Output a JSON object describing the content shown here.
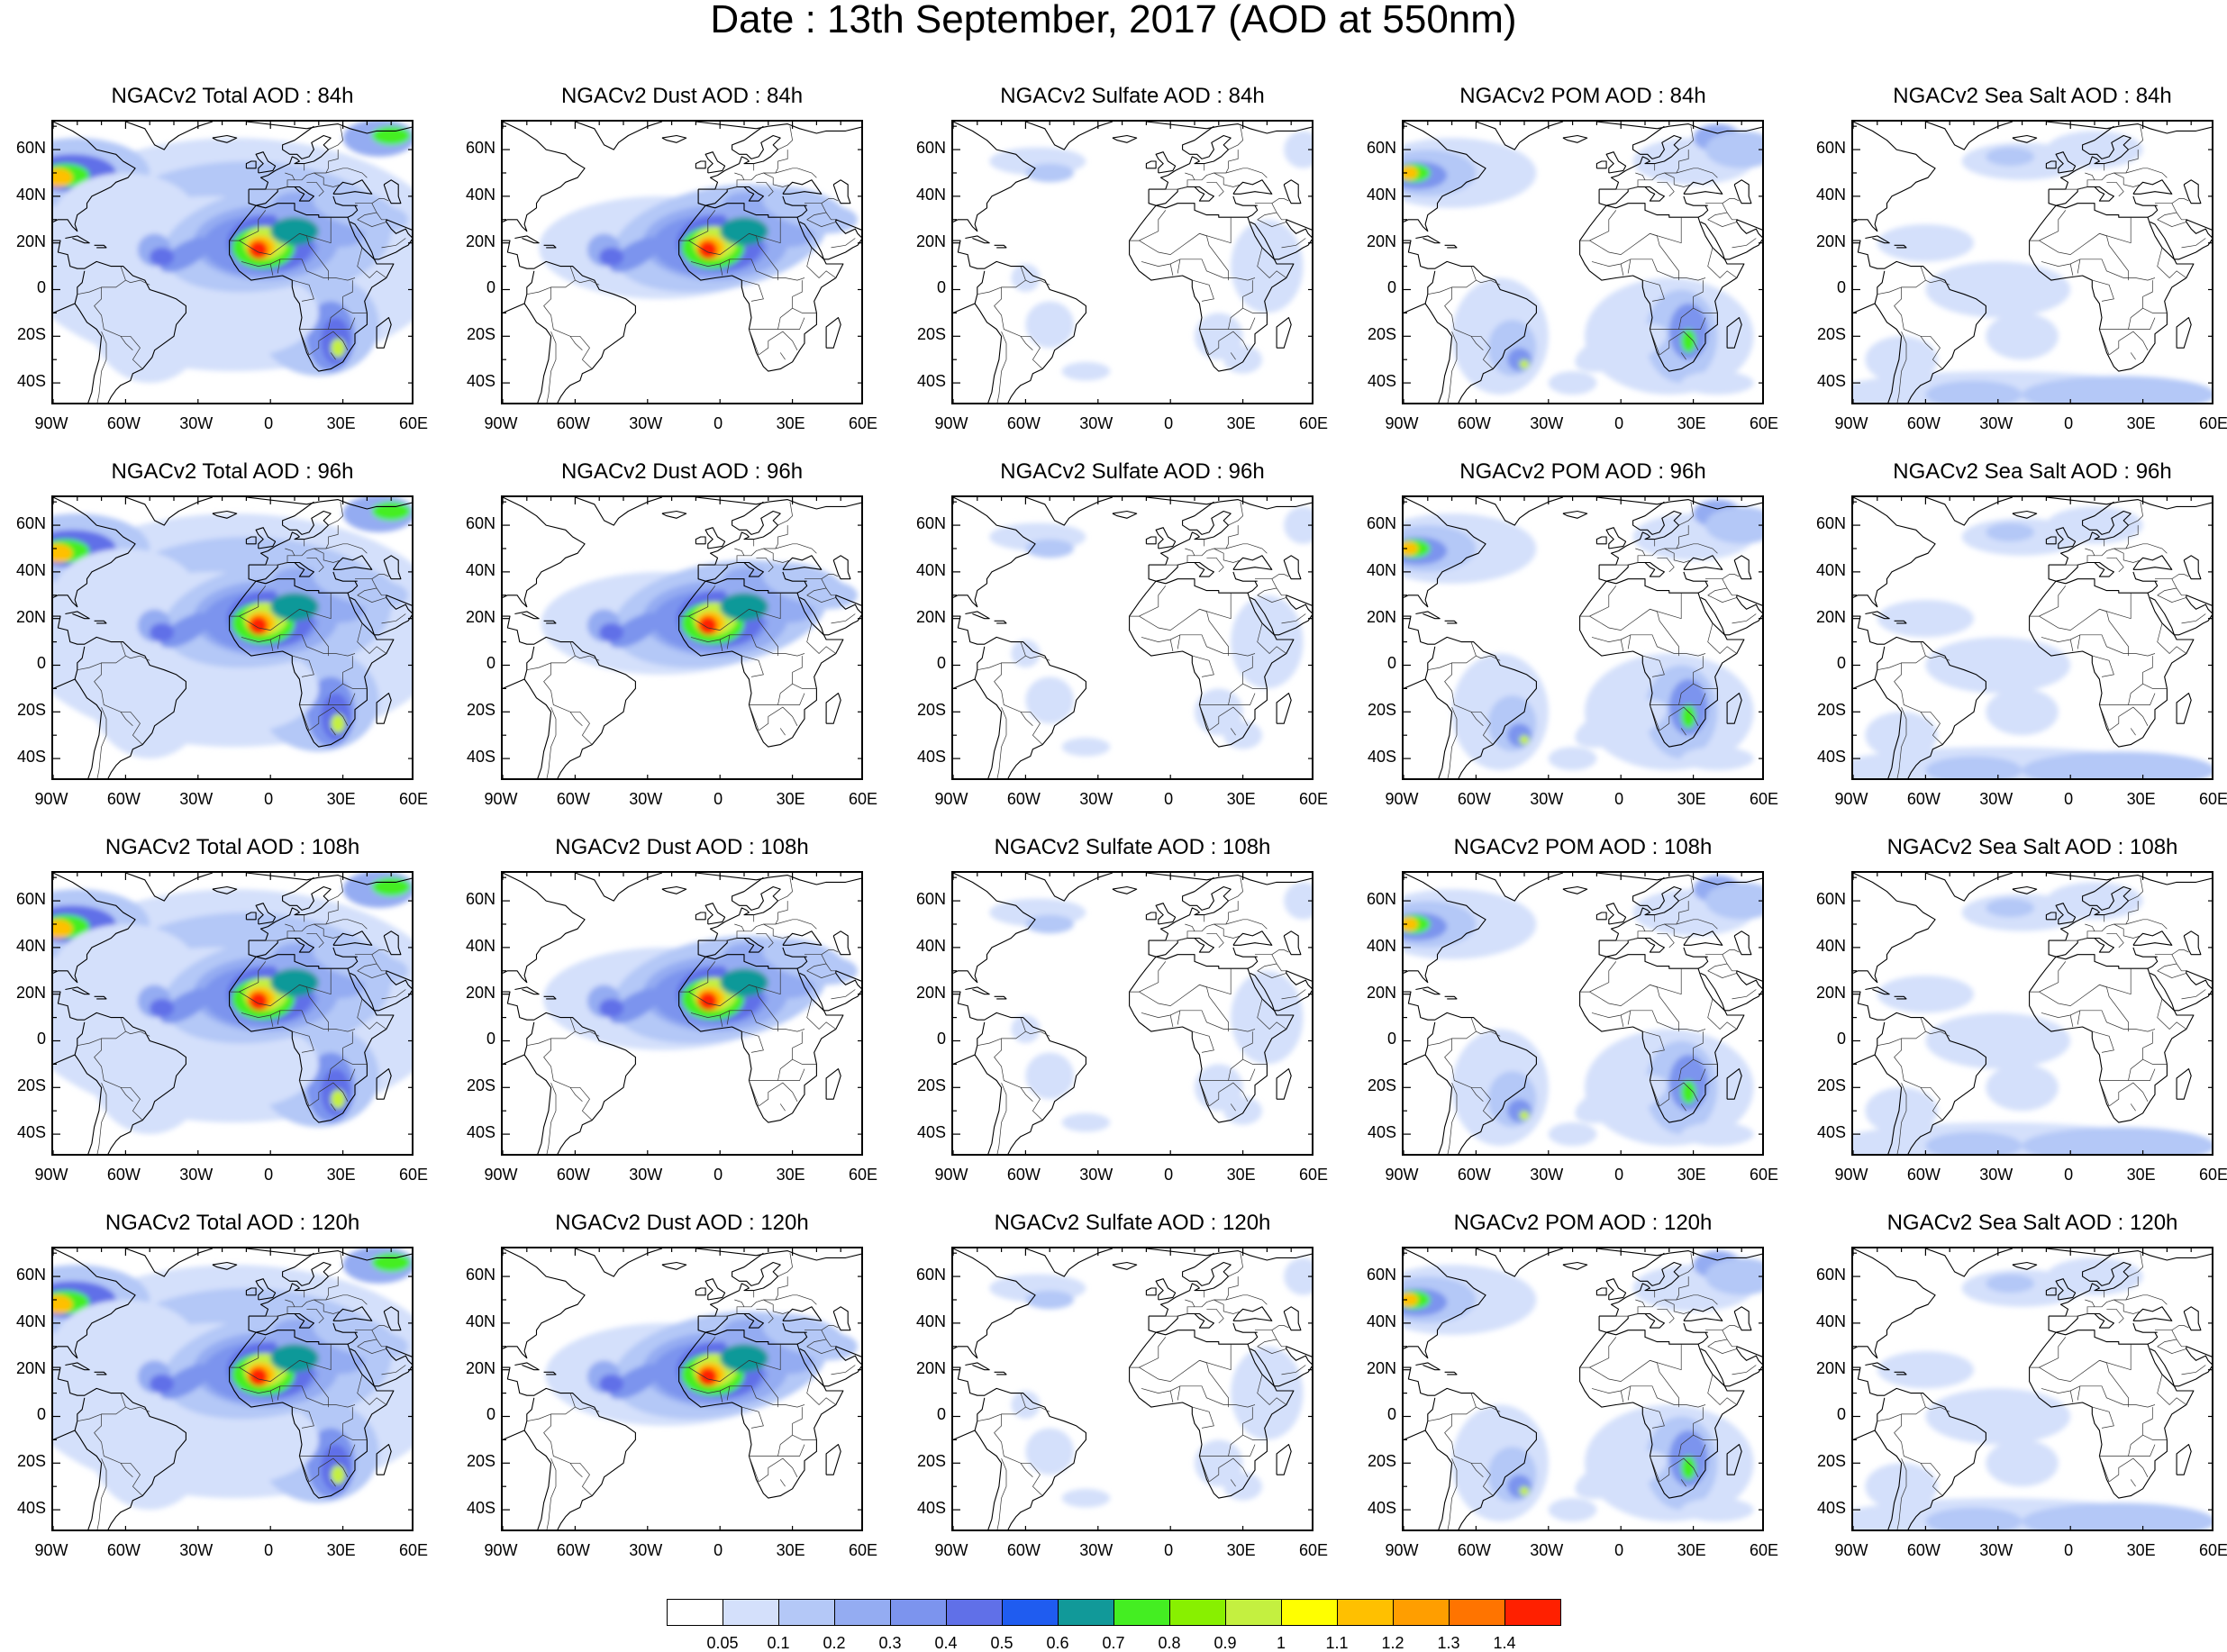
{
  "title": "Date : 13th September, 2017 (AOD at 550nm)",
  "rows": [
    {
      "hour": "84h",
      "panels": [
        "NGACv2 Total AOD : 84h",
        "NGACv2 Dust AOD : 84h",
        "NGACv2 Sulfate AOD : 84h",
        "NGACv2 POM AOD : 84h",
        "NGACv2 Sea Salt AOD : 84h"
      ]
    },
    {
      "hour": "96h",
      "panels": [
        "NGACv2 Total AOD : 96h",
        "NGACv2 Dust AOD : 96h",
        "NGACv2 Sulfate AOD : 96h",
        "NGACv2 POM AOD : 96h",
        "NGACv2 Sea Salt AOD : 96h"
      ]
    },
    {
      "hour": "108h",
      "panels": [
        "NGACv2 Total AOD : 108h",
        "NGACv2 Dust AOD : 108h",
        "NGACv2 Sulfate AOD : 108h",
        "NGACv2 POM AOD : 108h",
        "NGACv2 Sea Salt AOD : 108h"
      ]
    },
    {
      "hour": "120h",
      "panels": [
        "NGACv2 Total AOD : 120h",
        "NGACv2 Dust AOD : 120h",
        "NGACv2 Sulfate AOD : 120h",
        "NGACv2 POM AOD : 120h",
        "NGACv2 Sea Salt  AOD : 120h"
      ]
    }
  ],
  "panel_types": [
    "total",
    "dust",
    "sulfate",
    "pom",
    "seasalt"
  ],
  "lat_labels": [
    "60N",
    "40N",
    "20N",
    "0",
    "20S",
    "40S"
  ],
  "lon_labels": [
    "90W",
    "60W",
    "30W",
    "0",
    "30E",
    "60E"
  ],
  "colorbar": {
    "ticks": [
      "0.05",
      "0.1",
      "0.2",
      "0.3",
      "0.4",
      "0.5",
      "0.6",
      "0.7",
      "0.8",
      "0.9",
      "1",
      "1.1",
      "1.2",
      "1.3",
      "1.4"
    ],
    "colors": [
      "#ffffff",
      "#d4e0fb",
      "#b4c8f7",
      "#94acf2",
      "#7c94ee",
      "#6070e8",
      "#1f5cf0",
      "#119999",
      "#44ee22",
      "#88f000",
      "#c4f040",
      "#ffff00",
      "#ffc000",
      "#ff9e00",
      "#ff7400",
      "#ff2000"
    ]
  }
}
